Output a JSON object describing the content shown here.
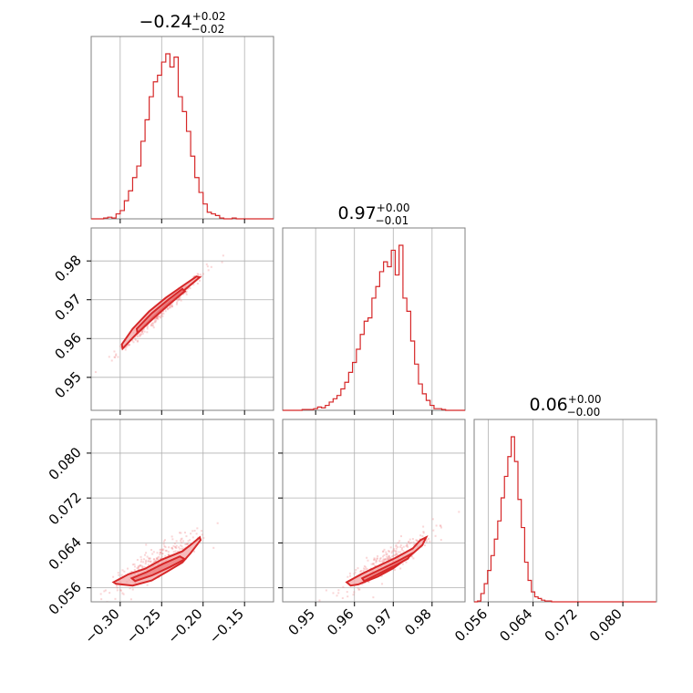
{
  "colors": {
    "series": "#d62728",
    "fill_outer": "#f4a6a7",
    "fill_inner": "#ec7f81",
    "scatter": "#f08a8b",
    "grid": "#b0b0b0",
    "frame": "#808080"
  },
  "chart_data": {
    "type": "corner",
    "parameters": [
      {
        "id": "p0",
        "title": {
          "main": "−0.24",
          "plus": "+0.02",
          "minus": "−0.02"
        },
        "range": [
          -0.335,
          -0.115
        ],
        "ticks": [
          -0.3,
          -0.25,
          -0.2,
          -0.15
        ],
        "tick_labels": [
          "−0.30",
          "−0.25",
          "−0.20",
          "−0.15"
        ],
        "median": -0.24,
        "sigma": 0.02
      },
      {
        "id": "p1",
        "title": {
          "main": "0.97",
          "plus": "+0.00",
          "minus": "−0.01"
        },
        "range": [
          0.9415,
          0.9885
        ],
        "ticks": [
          0.95,
          0.96,
          0.97,
          0.98
        ],
        "tick_labels": [
          "0.95",
          "0.96",
          "0.97",
          "0.98"
        ],
        "median": 0.9695,
        "sigma": 0.0045
      },
      {
        "id": "p2",
        "title": {
          "main": "0.06",
          "plus": "+0.00",
          "minus": "−0.00"
        },
        "range": [
          0.0535,
          0.086
        ],
        "ticks": [
          0.056,
          0.064,
          0.072,
          0.08
        ],
        "tick_labels": [
          "0.056",
          "0.064",
          "0.072",
          "0.080"
        ],
        "median": 0.06,
        "sigma": 0.0012
      }
    ],
    "histograms": [
      {
        "param": "p0",
        "bin_edges": [
          -0.335,
          -0.33,
          -0.325,
          -0.32,
          -0.315,
          -0.31,
          -0.305,
          -0.3,
          -0.295,
          -0.29,
          -0.285,
          -0.28,
          -0.275,
          -0.27,
          -0.265,
          -0.26,
          -0.255,
          -0.25,
          -0.245,
          -0.24,
          -0.235,
          -0.23,
          -0.225,
          -0.22,
          -0.215,
          -0.21,
          -0.205,
          -0.2,
          -0.195,
          -0.19,
          -0.185,
          -0.18,
          -0.175,
          -0.17,
          -0.165,
          -0.16,
          -0.155,
          -0.15,
          -0.145,
          -0.14,
          -0.135,
          -0.13,
          -0.125,
          -0.12,
          -0.115
        ],
        "counts": [
          0,
          0,
          0,
          0.5,
          1,
          0.5,
          3,
          5,
          11,
          17,
          25,
          32,
          47,
          60,
          74,
          83,
          87,
          95,
          100,
          92,
          98,
          74,
          65,
          53,
          38,
          25,
          16,
          9,
          4,
          3,
          2,
          0.5,
          0,
          0,
          0.5,
          0,
          0,
          0,
          0,
          0,
          0,
          0,
          0,
          0
        ]
      },
      {
        "param": "p1",
        "bin_edges": [
          0.9415,
          0.9425,
          0.9435,
          0.9445,
          0.9455,
          0.9465,
          0.9475,
          0.9485,
          0.9495,
          0.9505,
          0.9515,
          0.9525,
          0.9535,
          0.9545,
          0.9555,
          0.9565,
          0.9575,
          0.9585,
          0.9595,
          0.9605,
          0.9615,
          0.9625,
          0.9635,
          0.9645,
          0.9655,
          0.9665,
          0.9675,
          0.9685,
          0.9695,
          0.9705,
          0.9715,
          0.9725,
          0.9735,
          0.9745,
          0.9755,
          0.9765,
          0.9775,
          0.9785,
          0.9795,
          0.9805,
          0.9815,
          0.9825,
          0.9835,
          0.9845,
          0.9855,
          0.9865,
          0.9875,
          0.9885
        ],
        "counts": [
          0,
          0,
          0,
          0,
          0,
          0.5,
          0.5,
          0.5,
          1,
          2,
          1.5,
          3,
          5,
          7,
          9,
          13,
          17,
          23,
          29,
          37,
          46,
          54,
          56,
          68,
          75,
          84,
          90,
          87,
          97,
          82,
          100,
          68,
          60,
          42,
          28,
          16,
          10,
          6,
          3,
          1,
          1,
          0.5,
          0,
          0,
          0,
          0,
          0
        ]
      },
      {
        "param": "p2",
        "bin_edges": [
          0.0535,
          0.0541,
          0.0547,
          0.0553,
          0.0559,
          0.0565,
          0.0571,
          0.0577,
          0.0583,
          0.0589,
          0.0595,
          0.0601,
          0.0607,
          0.0613,
          0.0619,
          0.0625,
          0.0631,
          0.0637,
          0.0643,
          0.0649,
          0.0655,
          0.0661,
          0.0667,
          0.0673,
          0.0679,
          0.0685,
          0.0691,
          0.0697,
          0.0703,
          0.0709,
          0.0715,
          0.0721,
          0.0727,
          0.0733,
          0.0739,
          0.0745,
          0.0751,
          0.0757,
          0.0763,
          0.0769,
          0.0775,
          0.0781,
          0.0787,
          0.0793,
          0.0799,
          0.0805,
          0.0811,
          0.0817,
          0.0823,
          0.0829,
          0.0835,
          0.0841,
          0.0847,
          0.0853,
          0.0859
        ],
        "counts": [
          0,
          0.5,
          5,
          11,
          19,
          28,
          38,
          49,
          63,
          76,
          88,
          100,
          85,
          62,
          45,
          24,
          13,
          6,
          3,
          2,
          1,
          0.5,
          0.5,
          0,
          0,
          0,
          0,
          0,
          0,
          0,
          0,
          0,
          0,
          0,
          0,
          0,
          0,
          0,
          0,
          0,
          0,
          0,
          0,
          0,
          0,
          0,
          0,
          0,
          0,
          0,
          0,
          0,
          0,
          0
        ]
      }
    ],
    "pairs": [
      {
        "x_param": "p0",
        "y_param": "p1",
        "contour_outer": [
          [
            -0.298,
            0.9585
          ],
          [
            -0.285,
            0.9625
          ],
          [
            -0.265,
            0.967
          ],
          [
            -0.245,
            0.9705
          ],
          [
            -0.225,
            0.9735
          ],
          [
            -0.208,
            0.976
          ],
          [
            -0.204,
            0.9758
          ],
          [
            -0.222,
            0.9726
          ],
          [
            -0.243,
            0.969
          ],
          [
            -0.263,
            0.965
          ],
          [
            -0.283,
            0.9606
          ],
          [
            -0.297,
            0.9574
          ]
        ],
        "contour_inner": [
          [
            -0.28,
            0.9625
          ],
          [
            -0.262,
            0.9665
          ],
          [
            -0.242,
            0.97
          ],
          [
            -0.225,
            0.9728
          ],
          [
            -0.222,
            0.9722
          ],
          [
            -0.24,
            0.969
          ],
          [
            -0.26,
            0.9652
          ],
          [
            -0.279,
            0.9614
          ]
        ]
      },
      {
        "x_param": "p0",
        "y_param": "p2",
        "contour_outer": [
          [
            -0.308,
            0.057
          ],
          [
            -0.29,
            0.0584
          ],
          [
            -0.27,
            0.0594
          ],
          [
            -0.25,
            0.061
          ],
          [
            -0.225,
            0.0625
          ],
          [
            -0.212,
            0.064
          ],
          [
            -0.204,
            0.065
          ],
          [
            -0.203,
            0.0645
          ],
          [
            -0.215,
            0.0622
          ],
          [
            -0.225,
            0.0605
          ],
          [
            -0.242,
            0.059
          ],
          [
            -0.262,
            0.0573
          ],
          [
            -0.285,
            0.0564
          ],
          [
            -0.305,
            0.0567
          ]
        ],
        "contour_inner": [
          [
            -0.286,
            0.0577
          ],
          [
            -0.268,
            0.0588
          ],
          [
            -0.248,
            0.0603
          ],
          [
            -0.228,
            0.0616
          ],
          [
            -0.222,
            0.0611
          ],
          [
            -0.24,
            0.0597
          ],
          [
            -0.262,
            0.0582
          ],
          [
            -0.282,
            0.0572
          ]
        ]
      },
      {
        "x_param": "p1",
        "y_param": "p2",
        "contour_outer": [
          [
            0.958,
            0.057
          ],
          [
            0.962,
            0.0585
          ],
          [
            0.9665,
            0.06
          ],
          [
            0.9705,
            0.0613
          ],
          [
            0.975,
            0.063
          ],
          [
            0.977,
            0.0645
          ],
          [
            0.9785,
            0.065
          ],
          [
            0.9775,
            0.0636
          ],
          [
            0.974,
            0.0615
          ],
          [
            0.97,
            0.0595
          ],
          [
            0.966,
            0.058
          ],
          [
            0.961,
            0.0566
          ],
          [
            0.959,
            0.0564
          ]
        ],
        "contour_inner": [
          [
            0.962,
            0.0577
          ],
          [
            0.9665,
            0.0592
          ],
          [
            0.971,
            0.0607
          ],
          [
            0.9745,
            0.062
          ],
          [
            0.9738,
            0.0612
          ],
          [
            0.97,
            0.0598
          ],
          [
            0.966,
            0.0584
          ],
          [
            0.9625,
            0.0572
          ]
        ]
      }
    ]
  }
}
